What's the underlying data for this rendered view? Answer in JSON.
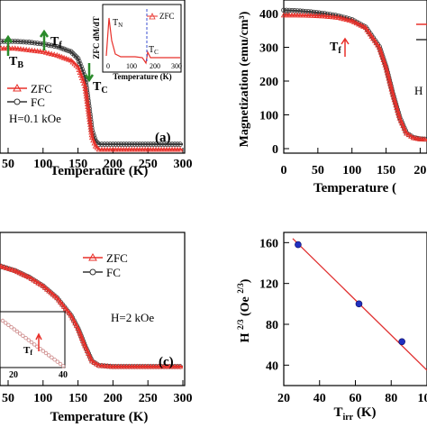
{
  "chart_data": [
    {
      "panel": "a",
      "type": "line",
      "xlabel": "Temperature (K)",
      "xticks": [
        "50",
        "100",
        "150",
        "200",
        "250",
        "300"
      ],
      "annotation_field": "H=0.1 kOe",
      "panel_label": "(a)",
      "markers": [
        "T_B",
        "T_f",
        "T_C"
      ],
      "legend": [
        "ZFC",
        "FC"
      ],
      "series": [
        {
          "name": "ZFC",
          "color": "#e8302a",
          "x": [
            40,
            60,
            80,
            100,
            120,
            140,
            150,
            160,
            165,
            170,
            175,
            180,
            200,
            250,
            300
          ],
          "y": [
            0.97,
            0.97,
            0.96,
            0.95,
            0.93,
            0.9,
            0.86,
            0.75,
            0.6,
            0.45,
            0.4,
            0.38,
            0.38,
            0.38,
            0.38
          ]
        },
        {
          "name": "FC",
          "color": "#333333",
          "x": [
            40,
            60,
            80,
            100,
            120,
            140,
            150,
            160,
            165,
            170,
            175,
            180,
            200,
            250,
            300
          ],
          "y": [
            0.99,
            0.99,
            0.985,
            0.975,
            0.96,
            0.93,
            0.89,
            0.78,
            0.63,
            0.47,
            0.41,
            0.39,
            0.39,
            0.39,
            0.39
          ]
        }
      ],
      "inset": {
        "ylabel": "ZFC dM/dT",
        "xlabel": "Temperature (K)",
        "xticks": [
          "0",
          "100",
          "200",
          "300"
        ],
        "legend": "ZFC",
        "labels": [
          "T_N",
          "T_C"
        ]
      }
    },
    {
      "panel": "b",
      "type": "line",
      "ylabel": "Magnetization (emu/cm³)",
      "xlabel": "Temperature (",
      "yticks": [
        "0",
        "100",
        "200",
        "300",
        "400"
      ],
      "xticks": [
        "0",
        "50",
        "100",
        "150",
        "20"
      ],
      "annotation_field": "H",
      "markers": [
        "T_f"
      ],
      "series": [
        {
          "name": "ZFC",
          "color": "#e8302a",
          "x": [
            0,
            20,
            40,
            60,
            80,
            100,
            120,
            140,
            150,
            160,
            170,
            180,
            190,
            200,
            210
          ],
          "x_unit": "K",
          "y": [
            395,
            395,
            394,
            392,
            388,
            378,
            358,
            300,
            240,
            160,
            90,
            45,
            32,
            28,
            27
          ]
        },
        {
          "name": "FC",
          "color": "#333333",
          "x": [
            0,
            20,
            40,
            60,
            80,
            100,
            120,
            140,
            150,
            160,
            170,
            180,
            190,
            200,
            210
          ],
          "y": [
            410,
            408,
            405,
            400,
            393,
            382,
            360,
            302,
            242,
            162,
            92,
            46,
            33,
            29,
            28
          ]
        }
      ]
    },
    {
      "panel": "c",
      "type": "line",
      "xlabel": "Temperature (K)",
      "xticks": [
        "50",
        "100",
        "150",
        "200",
        "250",
        "300"
      ],
      "annotation_field": "H=2 kOe",
      "panel_label": "(c)",
      "legend": [
        "ZFC",
        "FC"
      ],
      "inset": {
        "xticks": [
          "20",
          "40"
        ],
        "labels": [
          "T_f"
        ]
      },
      "series": [
        {
          "name": "ZFC",
          "color": "#e8302a",
          "x": [
            10,
            40,
            60,
            80,
            100,
            120,
            140,
            150,
            160,
            170,
            180,
            200,
            250,
            300
          ],
          "y": [
            1,
            0.97,
            0.93,
            0.87,
            0.79,
            0.68,
            0.52,
            0.4,
            0.24,
            0.1,
            0.06,
            0.05,
            0.05,
            0.05
          ]
        },
        {
          "name": "FC",
          "color": "#333333",
          "x": [
            10,
            40,
            60,
            80,
            100,
            120,
            140,
            150,
            160,
            170,
            180,
            200,
            250,
            300
          ],
          "y": [
            1,
            0.97,
            0.93,
            0.87,
            0.79,
            0.68,
            0.52,
            0.4,
            0.24,
            0.1,
            0.06,
            0.05,
            0.05,
            0.05
          ]
        }
      ]
    },
    {
      "panel": "d",
      "type": "scatter",
      "ylabel": "H 2/3 (Oe 2/3)",
      "xlabel": "T irr (K)",
      "yticks": [
        "40",
        "80",
        "120",
        "160"
      ],
      "xticks": [
        "20",
        "40",
        "60",
        "80",
        "100"
      ],
      "xlim": [
        20,
        100
      ],
      "ylim": [
        20,
        170
      ],
      "points": {
        "x": [
          28,
          62,
          86
        ],
        "y": [
          158,
          100,
          63
        ]
      },
      "fit": {
        "x": [
          25,
          100
        ],
        "y": [
          164,
          35
        ]
      }
    }
  ]
}
